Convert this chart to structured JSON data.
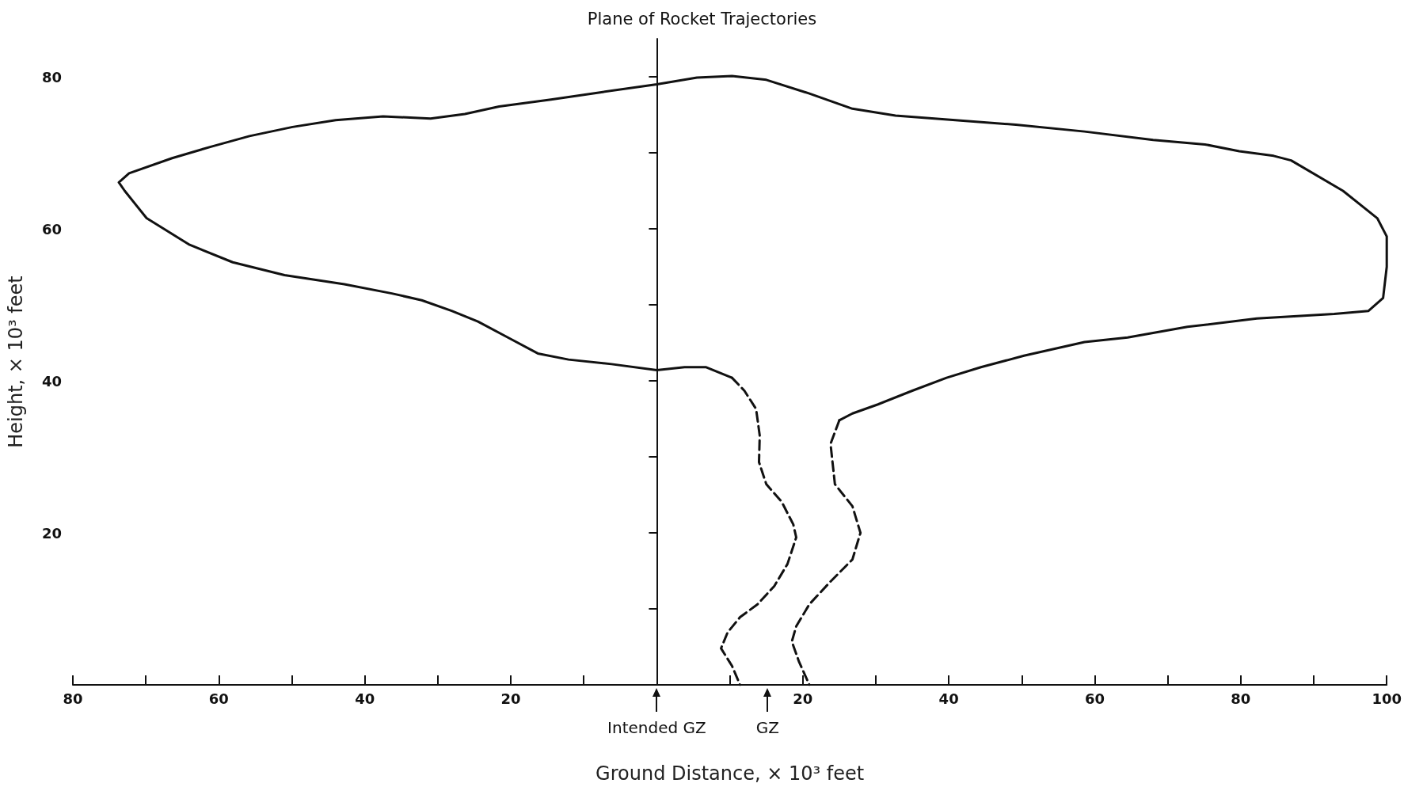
{
  "chart_data": {
    "type": "line",
    "title": "Plane of Rocket Trajectories",
    "xlabel": "Ground Distance, × 10³ feet",
    "ylabel": "Height, × 10³ feet",
    "xlim": [
      -80,
      100
    ],
    "ylim": [
      0,
      85
    ],
    "xticks": [
      {
        "value": -80,
        "label": "80"
      },
      {
        "value": -70,
        "label": null
      },
      {
        "value": -60,
        "label": "60"
      },
      {
        "value": -50,
        "label": null
      },
      {
        "value": -40,
        "label": "40"
      },
      {
        "value": -30,
        "label": null
      },
      {
        "value": -20,
        "label": "20"
      },
      {
        "value": -10,
        "label": null
      },
      {
        "value": 10,
        "label": null
      },
      20,
      {
        "value": 30,
        "label": null
      },
      40,
      {
        "value": 50,
        "label": null
      },
      60,
      {
        "value": 70,
        "label": null
      },
      80,
      {
        "value": 90,
        "label": null
      },
      100
    ],
    "annotations": [
      "Intended GZ",
      "GZ"
    ],
    "yticks": [
      {
        "value": 10,
        "label": null
      },
      20,
      {
        "value": 30,
        "label": null
      },
      40,
      {
        "value": 50,
        "label": null
      },
      60,
      {
        "value": 70,
        "label": null
      },
      80
    ],
    "grid": false,
    "marker": "none",
    "series": [
      {
        "color": "#111111",
        "line_style": "solid",
        "x": [
          10.3,
          6.7,
          3.8,
          0,
          -6.2,
          -12.1,
          -16.3,
          -20.4,
          -24.5,
          -28.1,
          -32.2,
          -36.3,
          -42.8,
          -51.0,
          -58.1,
          -64.0,
          -69.9,
          -72.9,
          -73.7,
          -72.3,
          -66.4,
          -61.1,
          -55.8,
          -49.9,
          -44.0,
          -37.5,
          -31.0,
          -26.3,
          -21.6,
          -14.5,
          -7.4,
          0,
          5.5,
          10.3,
          15.0,
          20.9,
          26.8,
          32.7,
          40.9,
          49.2,
          58.6,
          68.0,
          75.1,
          79.8,
          84.5,
          86.9,
          94.0,
          98.7,
          100,
          100,
          99.5,
          97.5,
          92.8,
          82.2,
          72.7,
          64.5,
          58.6,
          50.3,
          44.4,
          39.7,
          35.0,
          30.3,
          26.8,
          25.0
        ],
        "values": [
          40.4,
          41.8,
          41.8,
          41.4,
          42.2,
          42.8,
          43.6,
          45.7,
          47.8,
          49.2,
          50.6,
          51.5,
          52.7,
          53.9,
          55.6,
          57.9,
          61.4,
          65.0,
          66.1,
          67.3,
          69.3,
          70.8,
          72.2,
          73.4,
          74.3,
          74.8,
          74.5,
          75.1,
          76.1,
          77.0,
          78.0,
          79.0,
          79.9,
          80.1,
          79.6,
          77.8,
          75.8,
          74.9,
          74.3,
          73.7,
          72.8,
          71.7,
          71.1,
          70.2,
          69.6,
          69.0,
          65.0,
          61.4,
          59.0,
          55.0,
          50.9,
          49.2,
          48.8,
          48.2,
          47.1,
          45.7,
          45.1,
          43.3,
          41.8,
          40.4,
          38.7,
          36.9,
          35.7,
          34.8
        ]
      },
      {
        "color": "#111111",
        "line_style": "dashed",
        "x": [
          10.3,
          12.0,
          13.6,
          14.1,
          14.0,
          15.0,
          17.1,
          18.7,
          19.1,
          17.9,
          16.1,
          13.8,
          11.4,
          9.7,
          8.8,
          10.3,
          11.4
        ],
        "values": [
          40.4,
          38.7,
          36.3,
          32.8,
          29.3,
          26.4,
          24.1,
          21.1,
          19.4,
          15.9,
          13.0,
          10.6,
          8.9,
          6.9,
          4.8,
          2.5,
          0
        ]
      },
      {
        "color": "#111111",
        "line_style": "dashed",
        "x": [
          25.0,
          23.8,
          24.4,
          26.8,
          27.9,
          26.8,
          23.8,
          20.9,
          19.1,
          18.5,
          19.5,
          20.9
        ],
        "values": [
          34.8,
          31.7,
          26.4,
          23.5,
          20.0,
          16.5,
          13.6,
          10.6,
          7.7,
          5.7,
          3.0,
          0
        ]
      }
    ]
  }
}
